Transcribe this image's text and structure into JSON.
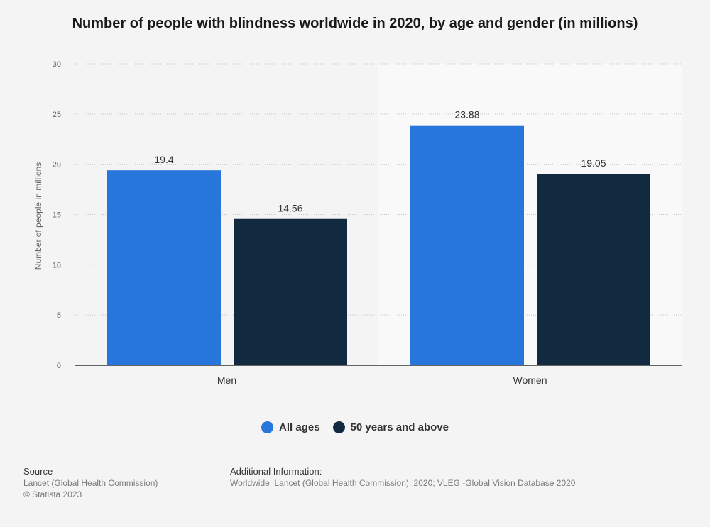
{
  "title": "Number of people with blindness worldwide in 2020, by age and gender (in millions)",
  "chart_data": {
    "type": "bar",
    "categories": [
      "Men",
      "Women"
    ],
    "series": [
      {
        "name": "All ages",
        "values": [
          19.4,
          23.88
        ],
        "labels": [
          "19.4",
          "23.88"
        ],
        "color": "#2776dc"
      },
      {
        "name": "50 years and above",
        "values": [
          14.56,
          19.05
        ],
        "labels": [
          "14.56",
          "19.05"
        ],
        "color": "#122a40"
      }
    ],
    "ylabel": "Number of people in millions",
    "xlabel": "",
    "ylim": [
      0,
      30
    ],
    "yticks": [
      "0",
      "5",
      "10",
      "15",
      "20",
      "25",
      "30"
    ],
    "grid": true,
    "legend_position": "bottom"
  },
  "footer": {
    "source_heading": "Source",
    "source_lines": [
      "Lancet (Global Health Commission)",
      "© Statista 2023"
    ],
    "info_heading": "Additional Information:",
    "info_text": "Worldwide; Lancet (Global Health Commission); 2020; VLEG -Global Vision Database 2020"
  },
  "colors": {
    "background": "#f4f4f4",
    "alt_band": "#f9f9f9",
    "gridline": "#c8c8c8",
    "axis": "#333333"
  }
}
